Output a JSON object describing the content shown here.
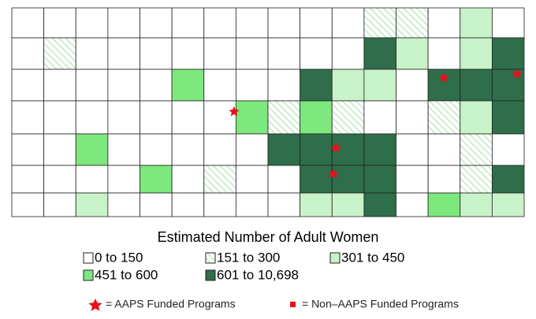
{
  "title": "Estimated Number of Adult Women",
  "legend": [
    "0 to 150",
    "151 to 300",
    "301 to 450",
    "451 to 600",
    "601 to 10,698"
  ],
  "markers": [
    "= AAPS Funded Programs",
    "= Non–AAPS Funded Programs"
  ]
}
